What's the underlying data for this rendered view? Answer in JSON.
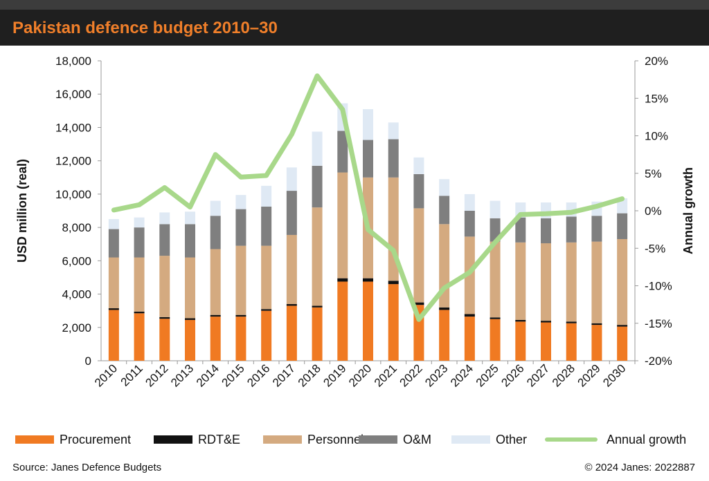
{
  "chart_data": {
    "type": "bar",
    "title": "Pakistan defence budget 2010–30",
    "ylabel": "USD million (real)",
    "y2label": "Annual growth",
    "ylim": [
      0,
      18000
    ],
    "y2lim": [
      -20,
      20
    ],
    "yticks": [
      "0",
      "2,000",
      "4,000",
      "6,000",
      "8,000",
      "10,000",
      "12,000",
      "14,000",
      "16,000",
      "18,000"
    ],
    "y2ticks": [
      "-20%",
      "-15%",
      "-10%",
      "-5%",
      "0%",
      "5%",
      "10%",
      "15%",
      "20%"
    ],
    "stacked": true,
    "grid": false,
    "legend_position": "bottom",
    "categories": [
      "2010",
      "2011",
      "2012",
      "2013",
      "2014",
      "2015",
      "2016",
      "2017",
      "2018",
      "2019",
      "2020",
      "2021",
      "2022",
      "2023",
      "2024",
      "2025",
      "2026",
      "2027",
      "2028",
      "2029",
      "2030"
    ],
    "series": [
      {
        "name": "Procurement",
        "color": "#f07a22",
        "values": [
          3050,
          2850,
          2520,
          2450,
          2650,
          2650,
          3000,
          3300,
          3200,
          4750,
          4750,
          4600,
          3350,
          3050,
          2650,
          2500,
          2350,
          2300,
          2250,
          2150,
          2050
        ]
      },
      {
        "name": "RDT&E",
        "color": "#111111",
        "values": [
          100,
          100,
          100,
          100,
          100,
          100,
          100,
          100,
          100,
          200,
          200,
          200,
          150,
          150,
          150,
          100,
          100,
          100,
          100,
          100,
          100
        ]
      },
      {
        "name": "Personnel",
        "color": "#d4aa80",
        "values": [
          3050,
          3250,
          3680,
          3650,
          3950,
          4150,
          3800,
          4150,
          5900,
          6350,
          6050,
          6200,
          5650,
          5000,
          4650,
          4550,
          4650,
          4650,
          4750,
          4900,
          5150
        ]
      },
      {
        "name": "O&M",
        "color": "#7f7f7f",
        "values": [
          1700,
          1800,
          1900,
          2000,
          2000,
          2200,
          2350,
          2650,
          2500,
          2500,
          2250,
          2300,
          2050,
          1700,
          1550,
          1400,
          1500,
          1500,
          1550,
          1550,
          1550
        ]
      },
      {
        "name": "Other",
        "color": "#dfe9f4",
        "values": [
          600,
          600,
          700,
          750,
          900,
          850,
          1250,
          1400,
          2050,
          1650,
          1850,
          1000,
          1000,
          1000,
          1000,
          1050,
          900,
          950,
          850,
          850,
          900
        ]
      }
    ],
    "line_series": {
      "name": "Annual growth",
      "color": "#a8d88a",
      "axis": "right",
      "values": [
        0.1,
        0.8,
        3.1,
        0.5,
        7.5,
        4.5,
        4.7,
        10.2,
        18,
        13.5,
        -2.5,
        -5.3,
        -14.5,
        -10.3,
        -8.2,
        -4.2,
        -0.5,
        -0.4,
        -0.2,
        0.6,
        1.6
      ]
    }
  },
  "footer": {
    "source": "Source: Janes Defence Budgets",
    "copyright": "© 2024 Janes: 2022887"
  }
}
